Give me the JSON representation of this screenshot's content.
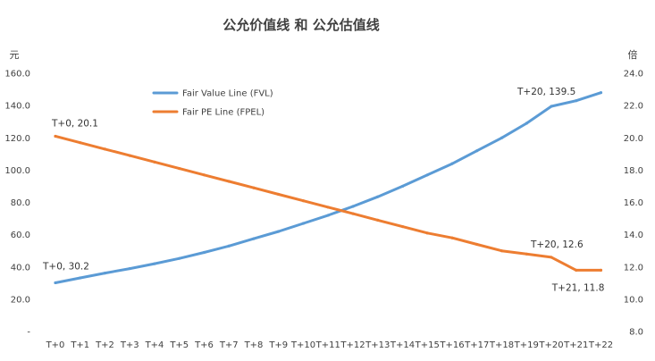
{
  "chart_data": {
    "type": "line",
    "title": "公允价值线 和 公允估值线",
    "y_left_unit": "元",
    "y_right_unit": "倍",
    "categories": [
      "T+0",
      "T+1",
      "T+2",
      "T+3",
      "T+4",
      "T+5",
      "T+6",
      "T+7",
      "T+8",
      "T+9",
      "T+10",
      "T+11",
      "T+12",
      "T+13",
      "T+14",
      "T+15",
      "T+16",
      "T+17",
      "T+18",
      "T+19",
      "T+20",
      "T+21",
      "T+22"
    ],
    "y_left": {
      "min": 0,
      "max": 160,
      "step": 20,
      "ticks": [
        "-",
        "20.0",
        "40.0",
        "60.0",
        "80.0",
        "100.0",
        "120.0",
        "140.0",
        "160.0"
      ]
    },
    "y_right": {
      "min": 8,
      "max": 24,
      "step": 2,
      "ticks": [
        "8.0",
        "10.0",
        "12.0",
        "14.0",
        "16.0",
        "18.0",
        "20.0",
        "22.0",
        "24.0"
      ]
    },
    "grid": false,
    "legend_position": "top-left",
    "series": [
      {
        "name": "Fair Value Line (FVL)",
        "axis": "left",
        "color": "#5b9bd5",
        "values": [
          30.2,
          33.2,
          36.2,
          39.0,
          42.0,
          45.3,
          49.0,
          53.0,
          57.5,
          62.0,
          67.0,
          72.0,
          77.5,
          83.5,
          90.0,
          97.0,
          104.0,
          112.0,
          120.0,
          129.0,
          139.5,
          143.0,
          148.0
        ]
      },
      {
        "name": "Fair PE Line (FPEL)",
        "axis": "right",
        "color": "#ed7d31",
        "values": [
          20.1,
          19.7,
          19.3,
          18.9,
          18.5,
          18.1,
          17.7,
          17.3,
          16.9,
          16.5,
          16.1,
          15.7,
          15.3,
          14.9,
          14.5,
          14.1,
          13.8,
          13.4,
          13.0,
          12.8,
          12.6,
          11.8,
          11.8
        ]
      }
    ],
    "annotations": [
      {
        "series": 0,
        "index": 0,
        "text": "T+0,  30.2"
      },
      {
        "series": 0,
        "index": 20,
        "text": "T+20,  139.5"
      },
      {
        "series": 1,
        "index": 0,
        "text": "T+0,  20.1"
      },
      {
        "series": 1,
        "index": 20,
        "text": "T+20,  12.6"
      },
      {
        "series": 1,
        "index": 21,
        "text": "T+21,  11.8"
      }
    ]
  }
}
